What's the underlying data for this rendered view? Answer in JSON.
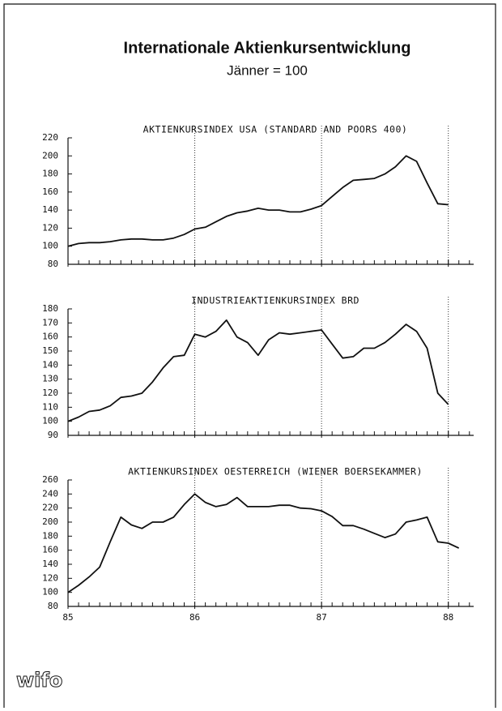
{
  "title": "Internationale Aktienkursentwicklung",
  "subtitle": "Jänner = 100",
  "logo": "wifo",
  "chart_data": [
    {
      "type": "line",
      "title": "AKTIENKURSINDEX USA (STANDARD AND POORS 400)",
      "color": "#111111",
      "x": [
        85,
        85.083,
        85.167,
        85.25,
        85.333,
        85.417,
        85.5,
        85.583,
        85.667,
        85.75,
        85.833,
        85.917,
        86,
        86.083,
        86.167,
        86.25,
        86.333,
        86.417,
        86.5,
        86.583,
        86.667,
        86.75,
        86.833,
        86.917,
        87,
        87.083,
        87.167,
        87.25,
        87.333,
        87.417,
        87.5,
        87.583,
        87.667,
        87.75,
        87.833,
        87.917,
        88
      ],
      "values": [
        100,
        103,
        104,
        104,
        105,
        107,
        108,
        108,
        107,
        107,
        109,
        113,
        119,
        121,
        127,
        133,
        137,
        139,
        142,
        140,
        140,
        138,
        138,
        141,
        145,
        155,
        165,
        173,
        174,
        175,
        180,
        188,
        200,
        194,
        170,
        147,
        146
      ],
      "xlim": [
        85,
        88.2
      ],
      "xticks": [
        85,
        86,
        87,
        88
      ],
      "ylim": [
        80,
        220
      ],
      "yticks": [
        80,
        100,
        120,
        140,
        160,
        180,
        200,
        220
      ],
      "grid": true,
      "show_xtick_labels": false
    },
    {
      "type": "line",
      "title": "INDUSTRIEAKTIENKURSINDEX BRD",
      "color": "#111111",
      "x": [
        85,
        85.083,
        85.167,
        85.25,
        85.333,
        85.417,
        85.5,
        85.583,
        85.667,
        85.75,
        85.833,
        85.917,
        86,
        86.083,
        86.167,
        86.25,
        86.333,
        86.417,
        86.5,
        86.583,
        86.667,
        86.75,
        86.833,
        86.917,
        87,
        87.083,
        87.167,
        87.25,
        87.333,
        87.417,
        87.5,
        87.583,
        87.667,
        87.75,
        87.833,
        87.917,
        88
      ],
      "values": [
        100,
        103,
        107,
        108,
        111,
        117,
        118,
        120,
        128,
        138,
        146,
        147,
        162,
        160,
        164,
        172,
        160,
        156,
        147,
        158,
        163,
        162,
        163,
        164,
        165,
        155,
        145,
        146,
        152,
        152,
        156,
        162,
        169,
        164,
        152,
        120,
        112
      ],
      "xlim": [
        85,
        88.2
      ],
      "xticks": [
        85,
        86,
        87,
        88
      ],
      "ylim": [
        90,
        180
      ],
      "yticks": [
        90,
        100,
        110,
        120,
        130,
        140,
        150,
        160,
        170,
        180
      ],
      "grid": true,
      "show_xtick_labels": false
    },
    {
      "type": "line",
      "title": "AKTIENKURSINDEX OESTERREICH (WIENER BOERSEKAMMER)",
      "color": "#111111",
      "x": [
        85,
        85.083,
        85.167,
        85.25,
        85.333,
        85.417,
        85.5,
        85.583,
        85.667,
        85.75,
        85.833,
        85.917,
        86,
        86.083,
        86.167,
        86.25,
        86.333,
        86.417,
        86.5,
        86.583,
        86.667,
        86.75,
        86.833,
        86.917,
        87,
        87.083,
        87.167,
        87.25,
        87.333,
        87.417,
        87.5,
        87.583,
        87.667,
        87.75,
        87.833,
        87.917,
        88,
        88.083
      ],
      "values": [
        100,
        110,
        122,
        136,
        172,
        207,
        196,
        191,
        200,
        200,
        207,
        225,
        240,
        228,
        222,
        225,
        235,
        222,
        222,
        222,
        224,
        224,
        220,
        219,
        216,
        208,
        195,
        195,
        190,
        184,
        178,
        183,
        200,
        203,
        207,
        172,
        170,
        163
      ],
      "xlim": [
        85,
        88.2
      ],
      "xticks": [
        85,
        86,
        87,
        88
      ],
      "ylim": [
        80,
        260
      ],
      "yticks": [
        80,
        100,
        120,
        140,
        160,
        180,
        200,
        220,
        240,
        260
      ],
      "grid": true,
      "show_xtick_labels": true
    }
  ]
}
